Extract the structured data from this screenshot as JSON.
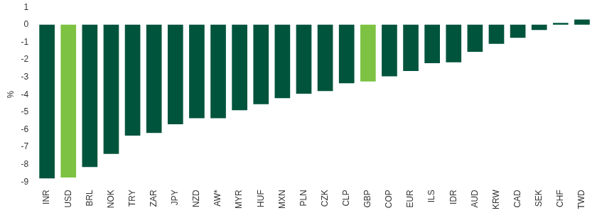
{
  "chart_data": {
    "type": "bar",
    "categories": [
      "INR",
      "USD",
      "BRL",
      "NOK",
      "TRY",
      "ZAR",
      "JPY",
      "NZD",
      "AW*",
      "MYR",
      "HUF",
      "MXN",
      "PLN",
      "CZK",
      "CLP",
      "GBP",
      "COP",
      "EUR",
      "ILS",
      "IDR",
      "AUD",
      "KRW",
      "CAD",
      "SEK",
      "CHF",
      "TWD"
    ],
    "values": [
      -8.8,
      -8.75,
      -8.15,
      -7.4,
      -6.35,
      -6.2,
      -5.7,
      -5.35,
      -5.35,
      -4.9,
      -4.55,
      -4.2,
      -3.95,
      -3.8,
      -3.35,
      -3.25,
      -2.95,
      -2.65,
      -2.2,
      -2.15,
      -1.55,
      -1.1,
      -0.75,
      -0.3,
      0.1,
      0.3
    ],
    "colors": [
      "#00543c",
      "#7dc242",
      "#00543c",
      "#00543c",
      "#00543c",
      "#00543c",
      "#00543c",
      "#00543c",
      "#00543c",
      "#00543c",
      "#00543c",
      "#00543c",
      "#00543c",
      "#00543c",
      "#00543c",
      "#7dc242",
      "#00543c",
      "#00543c",
      "#00543c",
      "#00543c",
      "#00543c",
      "#00543c",
      "#00543c",
      "#00543c",
      "#00543c",
      "#00543c"
    ],
    "y_label": "%",
    "ylim": [
      -9,
      1
    ],
    "yticks": [
      -9,
      -8,
      -7,
      -6,
      -5,
      -4,
      -3,
      -2,
      -1,
      0,
      1
    ],
    "grid": false
  }
}
